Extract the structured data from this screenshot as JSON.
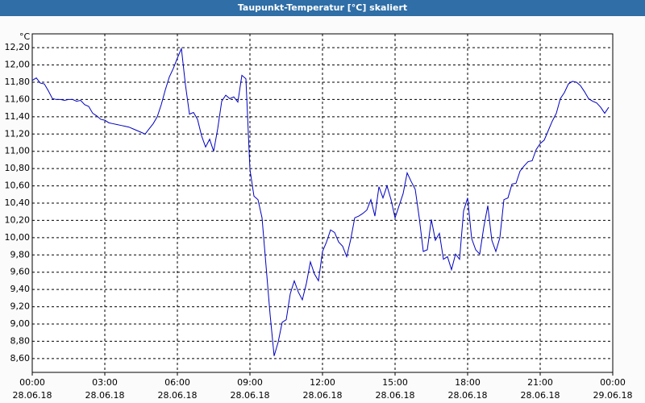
{
  "chart_data": {
    "type": "line",
    "title": "Taupunkt-Temperatur [°C] skaliert",
    "y_label": "°C",
    "x": [
      0,
      10,
      20,
      30,
      40,
      50,
      60,
      70,
      80,
      90,
      100,
      110,
      120,
      130,
      140,
      150,
      160,
      170,
      180,
      190,
      200,
      210,
      220,
      230,
      240,
      250,
      260,
      270,
      280,
      290,
      300,
      310,
      320,
      330,
      340,
      350,
      360,
      370,
      380,
      390,
      400,
      410,
      420,
      430,
      440,
      450,
      460,
      470,
      480,
      490,
      500,
      510,
      520,
      530,
      540,
      550,
      560,
      570,
      580,
      590,
      600,
      610,
      620,
      630,
      640,
      650,
      660,
      670,
      680,
      690,
      700,
      710,
      720,
      730,
      740,
      750,
      760,
      770,
      780,
      790,
      800,
      810,
      820,
      830,
      840,
      850,
      860,
      870,
      880,
      890,
      900,
      910,
      920,
      930,
      940,
      950,
      960,
      970,
      980,
      990,
      1000,
      1010,
      1020,
      1030,
      1040,
      1050,
      1060,
      1070,
      1080,
      1090,
      1100,
      1110,
      1120,
      1130,
      1140,
      1150,
      1160,
      1170,
      1180,
      1190,
      1200,
      1210,
      1220,
      1230,
      1240,
      1250,
      1260,
      1270,
      1280,
      1290,
      1300,
      1310,
      1320,
      1330,
      1340,
      1350,
      1360,
      1370,
      1380,
      1390,
      1400,
      1410,
      1420,
      1430
    ],
    "series": [
      {
        "name": "Taupunkt-Temperatur",
        "color": "#0000c0",
        "values": [
          11.82,
          11.85,
          11.79,
          11.78,
          11.7,
          11.61,
          11.6,
          11.6,
          11.59,
          11.6,
          11.6,
          11.58,
          11.59,
          11.54,
          11.52,
          11.44,
          11.41,
          11.37,
          11.36,
          11.33,
          11.32,
          11.31,
          11.3,
          11.29,
          11.28,
          11.26,
          11.24,
          11.22,
          11.2,
          11.26,
          11.32,
          11.4,
          11.54,
          11.71,
          11.86,
          11.96,
          12.08,
          12.19,
          11.77,
          11.43,
          11.45,
          11.37,
          11.18,
          11.05,
          11.14,
          11.0,
          11.26,
          11.58,
          11.65,
          11.61,
          11.63,
          11.57,
          11.88,
          11.84,
          10.79,
          10.48,
          10.44,
          10.23,
          9.67,
          9.11,
          8.63,
          8.79,
          9.02,
          9.05,
          9.35,
          9.5,
          9.37,
          9.28,
          9.47,
          9.72,
          9.58,
          9.5,
          9.84,
          9.95,
          10.09,
          10.06,
          9.95,
          9.9,
          9.78,
          9.98,
          10.23,
          10.25,
          10.28,
          10.32,
          10.44,
          10.25,
          10.59,
          10.46,
          10.6,
          10.44,
          10.23,
          10.37,
          10.51,
          10.75,
          10.65,
          10.56,
          10.23,
          9.84,
          9.86,
          10.21,
          9.97,
          10.05,
          9.75,
          9.78,
          9.63,
          9.81,
          9.75,
          10.31,
          10.46,
          9.99,
          9.86,
          9.81,
          10.12,
          10.37,
          9.97,
          9.84,
          10.0,
          10.44,
          10.46,
          10.62,
          10.63,
          10.77,
          10.83,
          10.88,
          10.89,
          11.02,
          11.09,
          11.13,
          11.24,
          11.35,
          11.44,
          11.61,
          11.68,
          11.78,
          11.81,
          11.8,
          11.76,
          11.69,
          11.61,
          11.58,
          11.56,
          11.51,
          11.44,
          11.51
        ]
      }
    ],
    "xlim": [
      0,
      1440
    ],
    "xticks": [
      {
        "value": 0,
        "label": "00:00\n28.06.18"
      },
      {
        "value": 180,
        "label": "03:00\n28.06.18"
      },
      {
        "value": 360,
        "label": "06:00\n28.06.18"
      },
      {
        "value": 540,
        "label": "09:00\n28.06.18"
      },
      {
        "value": 720,
        "label": "12:00\n28.06.18"
      },
      {
        "value": 900,
        "label": "15:00\n28.06.18"
      },
      {
        "value": 1080,
        "label": "18:00\n28.06.18"
      },
      {
        "value": 1260,
        "label": "21:00\n28.06.18"
      },
      {
        "value": 1440,
        "label": "00:00\n29.06.18"
      }
    ],
    "ylim": [
      8.44,
      12.36
    ],
    "yticks": [
      {
        "value": 8.6,
        "label": "8,60"
      },
      {
        "value": 8.8,
        "label": "8,80"
      },
      {
        "value": 9.0,
        "label": "9,00"
      },
      {
        "value": 9.2,
        "label": "9,20"
      },
      {
        "value": 9.4,
        "label": "9,40"
      },
      {
        "value": 9.6,
        "label": "9,60"
      },
      {
        "value": 9.8,
        "label": "9,80"
      },
      {
        "value": 10.0,
        "label": "10,00"
      },
      {
        "value": 10.2,
        "label": "10,20"
      },
      {
        "value": 10.4,
        "label": "10,40"
      },
      {
        "value": 10.6,
        "label": "10,60"
      },
      {
        "value": 10.8,
        "label": "10,80"
      },
      {
        "value": 11.0,
        "label": "11,00"
      },
      {
        "value": 11.2,
        "label": "11,20"
      },
      {
        "value": 11.4,
        "label": "11,40"
      },
      {
        "value": 11.6,
        "label": "11,60"
      },
      {
        "value": 11.8,
        "label": "11,80"
      },
      {
        "value": 12.0,
        "label": "12,00"
      },
      {
        "value": 12.2,
        "label": "12,20"
      }
    ],
    "grid": true
  }
}
